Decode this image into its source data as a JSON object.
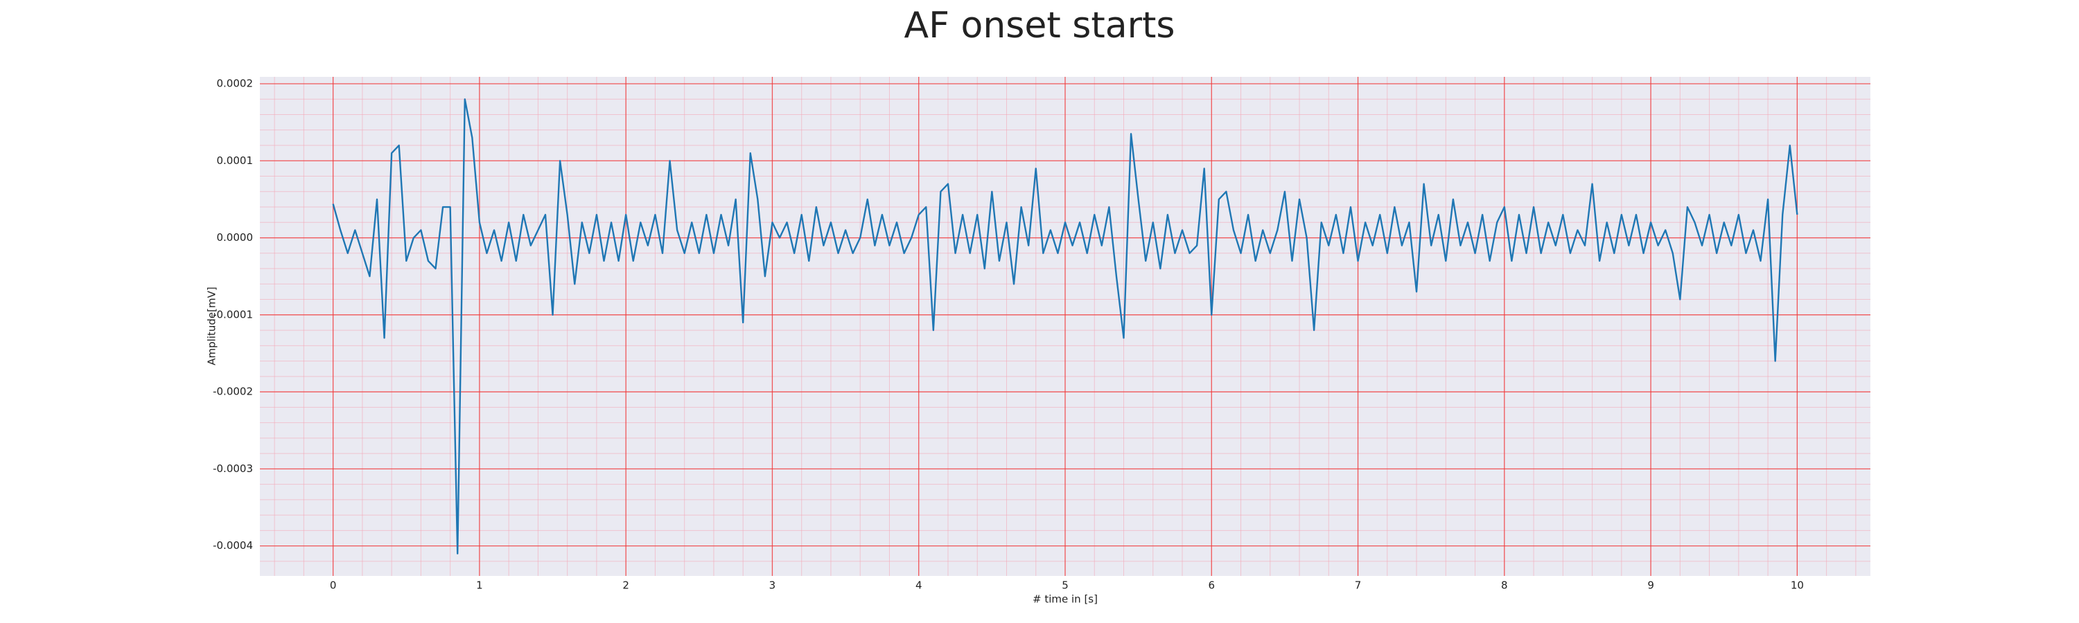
{
  "chart_data": {
    "type": "line",
    "title": "AF onset starts",
    "xlabel": "# time in [s]",
    "ylabel": "Amplitude[mV]",
    "x": [
      0,
      0.05,
      0.1,
      0.15,
      0.2,
      0.25,
      0.3,
      0.35,
      0.4,
      0.45,
      0.5,
      0.55,
      0.6,
      0.65,
      0.7,
      0.75,
      0.8,
      0.85,
      0.9,
      0.95,
      1,
      1.05,
      1.1,
      1.15,
      1.2,
      1.25,
      1.3,
      1.35,
      1.4,
      1.45,
      1.5,
      1.55,
      1.6,
      1.65,
      1.7,
      1.75,
      1.8,
      1.85,
      1.9,
      1.95,
      2,
      2.05,
      2.1,
      2.15,
      2.2,
      2.25,
      2.3,
      2.35,
      2.4,
      2.45,
      2.5,
      2.55,
      2.6,
      2.65,
      2.7,
      2.75,
      2.8,
      2.85,
      2.9,
      2.95,
      3,
      3.05,
      3.1,
      3.15,
      3.2,
      3.25,
      3.3,
      3.35,
      3.4,
      3.45,
      3.5,
      3.55,
      3.6,
      3.65,
      3.7,
      3.75,
      3.8,
      3.85,
      3.9,
      3.95,
      4,
      4.05,
      4.1,
      4.15,
      4.2,
      4.25,
      4.3,
      4.35,
      4.4,
      4.45,
      4.5,
      4.55,
      4.6,
      4.65,
      4.7,
      4.75,
      4.8,
      4.85,
      4.9,
      4.95,
      5,
      5.05,
      5.1,
      5.15,
      5.2,
      5.25,
      5.3,
      5.35,
      5.4,
      5.45,
      5.5,
      5.55,
      5.6,
      5.65,
      5.7,
      5.75,
      5.8,
      5.85,
      5.9,
      5.95,
      6,
      6.05,
      6.1,
      6.15,
      6.2,
      6.25,
      6.3,
      6.35,
      6.4,
      6.45,
      6.5,
      6.55,
      6.6,
      6.65,
      6.7,
      6.75,
      6.8,
      6.85,
      6.9,
      6.95,
      7,
      7.05,
      7.1,
      7.15,
      7.2,
      7.25,
      7.3,
      7.35,
      7.4,
      7.45,
      7.5,
      7.55,
      7.6,
      7.65,
      7.7,
      7.75,
      7.8,
      7.85,
      7.9,
      7.95,
      8,
      8.05,
      8.1,
      8.15,
      8.2,
      8.25,
      8.3,
      8.35,
      8.4,
      8.45,
      8.5,
      8.55,
      8.6,
      8.65,
      8.7,
      8.75,
      8.8,
      8.85,
      8.9,
      8.95,
      9,
      9.05,
      9.1,
      9.15,
      9.2,
      9.25,
      9.3,
      9.35,
      9.4,
      9.45,
      9.5,
      9.55,
      9.6,
      9.65,
      9.7,
      9.75,
      9.8,
      9.85,
      9.9,
      9.95,
      10
    ],
    "series": [
      {
        "color": "#1f77b4",
        "values": [
          4.4e-05,
          1e-05,
          -2e-05,
          1e-05,
          -2e-05,
          -5e-05,
          5e-05,
          -0.00013,
          0.00011,
          0.00012,
          -3e-05,
          0,
          1e-05,
          -3e-05,
          -4e-05,
          4e-05,
          4e-05,
          -0.00041,
          0.00018,
          0.00013,
          2e-05,
          -2e-05,
          1e-05,
          -3e-05,
          2e-05,
          -3e-05,
          3e-05,
          -1e-05,
          1e-05,
          3e-05,
          -0.0001,
          0.0001,
          3e-05,
          -6e-05,
          2e-05,
          -2e-05,
          3e-05,
          -3e-05,
          2e-05,
          -3e-05,
          3e-05,
          -3e-05,
          2e-05,
          -1e-05,
          3e-05,
          -2e-05,
          0.0001,
          1e-05,
          -2e-05,
          2e-05,
          -2e-05,
          3e-05,
          -2e-05,
          3e-05,
          -1e-05,
          5e-05,
          -0.00011,
          0.00011,
          5e-05,
          -5e-05,
          2e-05,
          0,
          2e-05,
          -2e-05,
          3e-05,
          -3e-05,
          4e-05,
          -1e-05,
          2e-05,
          -2e-05,
          1e-05,
          -2e-05,
          0,
          5e-05,
          -1e-05,
          3e-05,
          -1e-05,
          2e-05,
          -2e-05,
          0,
          3e-05,
          4e-05,
          -0.00012,
          6e-05,
          7e-05,
          -2e-05,
          3e-05,
          -2e-05,
          3e-05,
          -4e-05,
          6e-05,
          -3e-05,
          2e-05,
          -6e-05,
          4e-05,
          -1e-05,
          9e-05,
          -2e-05,
          1e-05,
          -2e-05,
          2e-05,
          -1e-05,
          2e-05,
          -2e-05,
          3e-05,
          -1e-05,
          4e-05,
          -5e-05,
          -0.00013,
          0.000135,
          5e-05,
          -3e-05,
          2e-05,
          -4e-05,
          3e-05,
          -2e-05,
          1e-05,
          -2e-05,
          -1e-05,
          9e-05,
          -0.0001,
          5e-05,
          6e-05,
          1e-05,
          -2e-05,
          3e-05,
          -3e-05,
          1e-05,
          -2e-05,
          1e-05,
          6e-05,
          -3e-05,
          5e-05,
          0,
          -0.00012,
          2e-05,
          -1e-05,
          3e-05,
          -2e-05,
          4e-05,
          -3e-05,
          2e-05,
          -1e-05,
          3e-05,
          -2e-05,
          4e-05,
          -1e-05,
          2e-05,
          -7e-05,
          7e-05,
          -1e-05,
          3e-05,
          -3e-05,
          5e-05,
          -1e-05,
          2e-05,
          -2e-05,
          3e-05,
          -3e-05,
          2e-05,
          4e-05,
          -3e-05,
          3e-05,
          -2e-05,
          4e-05,
          -2e-05,
          2e-05,
          -1e-05,
          3e-05,
          -2e-05,
          1e-05,
          -1e-05,
          7e-05,
          -3e-05,
          2e-05,
          -2e-05,
          3e-05,
          -1e-05,
          3e-05,
          -2e-05,
          2e-05,
          -1e-05,
          1e-05,
          -2e-05,
          -8e-05,
          4e-05,
          2e-05,
          -1e-05,
          3e-05,
          -2e-05,
          2e-05,
          -1e-05,
          3e-05,
          -2e-05,
          1e-05,
          -3e-05,
          5e-05,
          -0.00016,
          3e-05,
          0.00012,
          3e-05
        ]
      }
    ],
    "xlim": [
      -0.5,
      10.5
    ],
    "xticks": [
      0,
      1,
      2,
      3,
      4,
      5,
      6,
      7,
      8,
      9,
      10
    ],
    "ylim": [
      -0.000439,
      0.000209
    ],
    "yticks": [
      0.0002,
      0.0001,
      {
        "value": 0,
        "label": "0.0000"
      },
      -0.0001,
      -0.0002,
      -0.0003,
      -0.0004
    ],
    "grid": true
  }
}
